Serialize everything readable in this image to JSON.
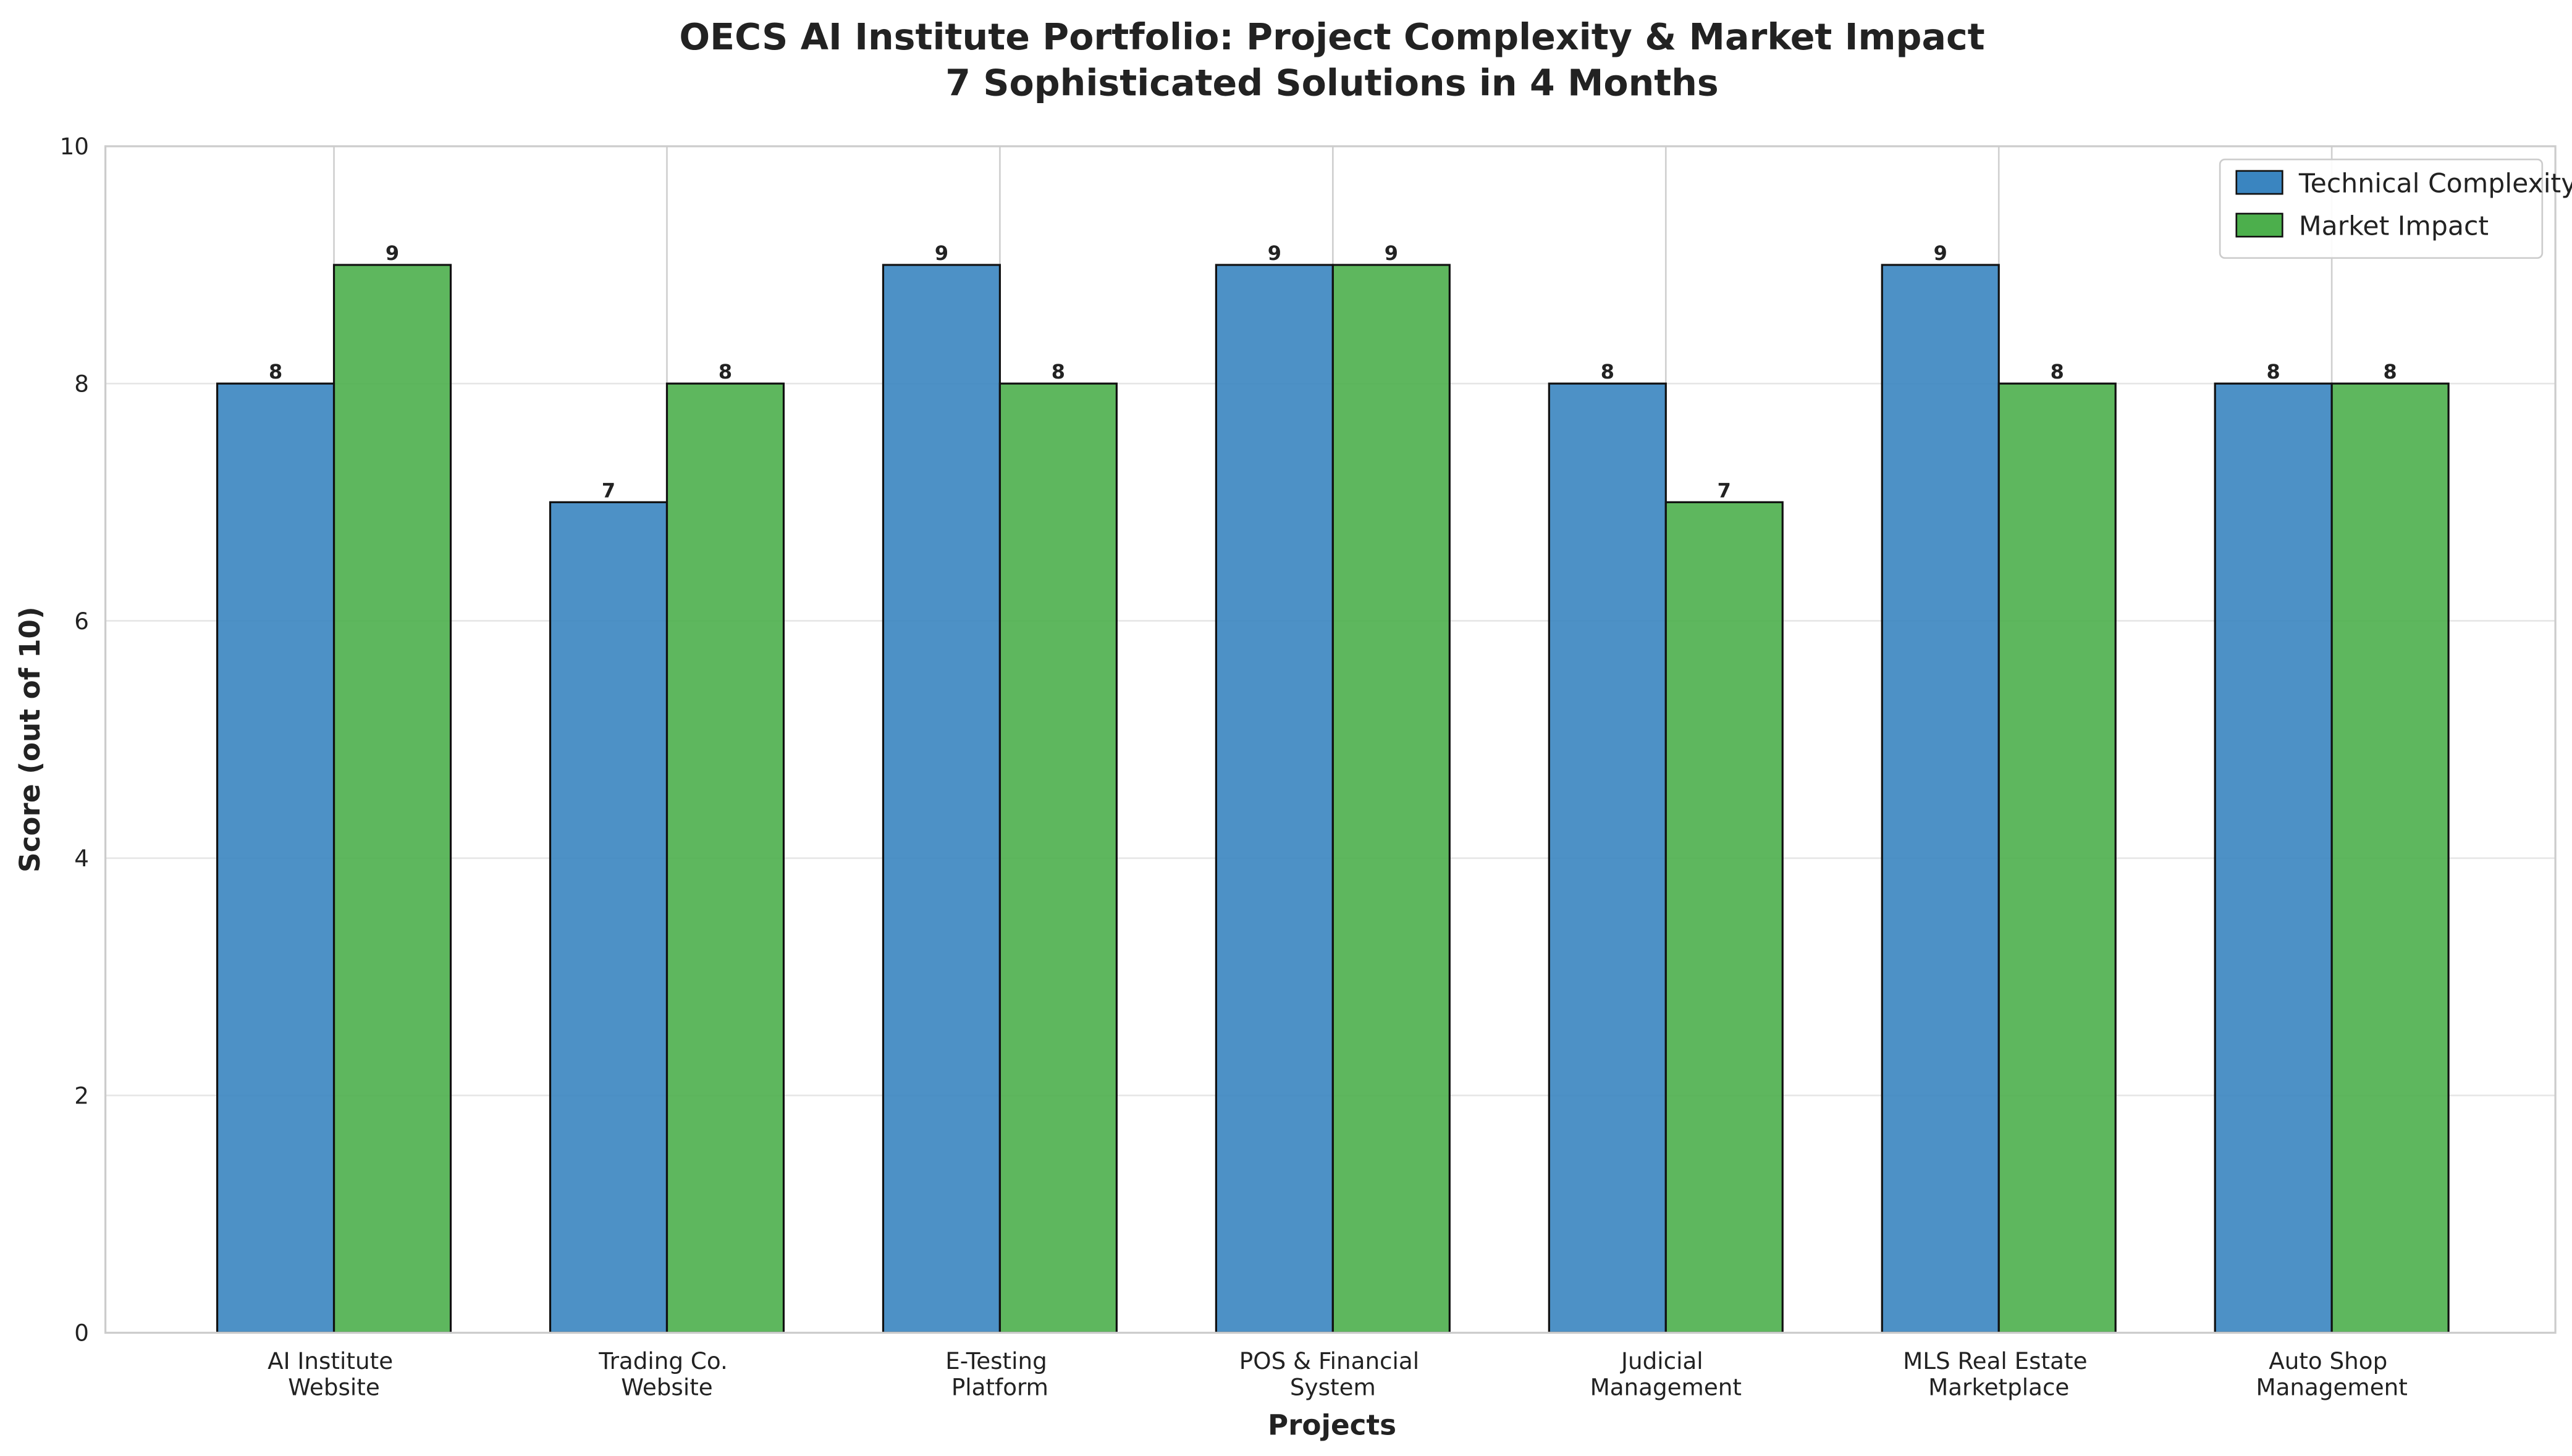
{
  "chart_data": {
    "type": "bar",
    "title": "OECS AI Institute Portfolio: Project Complexity & Market Impact",
    "subtitle": "7 Sophisticated Solutions in 4 Months",
    "x_label": "Projects",
    "y_label": "Score (out of 10)",
    "categories": [
      "AI Institute Website",
      "Trading Co. Website",
      "E-Testing Platform",
      "POS & Financial System",
      "Judicial Management",
      "MLS Real Estate Marketplace",
      "Auto Shop Management"
    ],
    "series": [
      {
        "name": "Technical Complexity",
        "color": "#3a85c0",
        "values": [
          8,
          7,
          9,
          9,
          8,
          9,
          8
        ]
      },
      {
        "name": "Market Impact",
        "color": "#4caf4c",
        "values": [
          9,
          8,
          8,
          9,
          7,
          8,
          8
        ]
      }
    ],
    "ylim": [
      0,
      10
    ],
    "yticks": [
      0,
      2,
      4,
      6,
      8,
      10
    ],
    "grid": true,
    "legend": "upper right"
  }
}
